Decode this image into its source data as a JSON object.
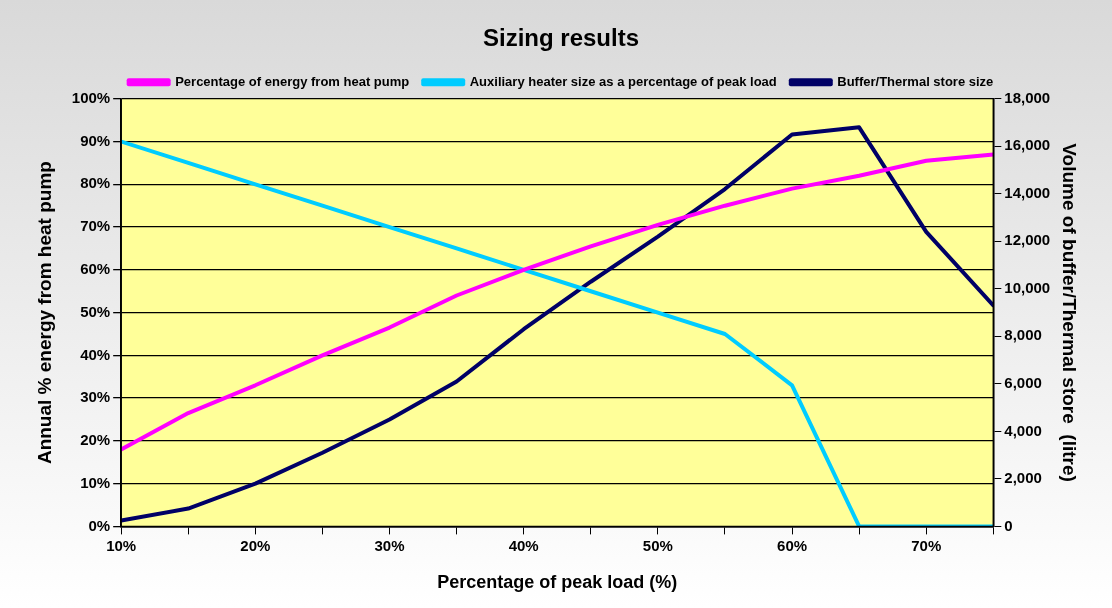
{
  "chart_data": {
    "type": "line",
    "title": "Sizing results",
    "xlabel": "Percentage of peak load (%)",
    "ylabel": "Annual % energy from heat pump",
    "y2label": "Volume of buffer/Thermal store  (litre)",
    "x": [
      10,
      15,
      20,
      25,
      30,
      35,
      40,
      45,
      50,
      55,
      60,
      65,
      70,
      75
    ],
    "series": [
      {
        "name": "Percentage of energy from heat pump",
        "color": "#ff00ff",
        "values": [
          18,
          26.5,
          33,
          40,
          46.5,
          54,
          60,
          65.5,
          70.5,
          75,
          79,
          82,
          85.5,
          87
        ]
      },
      {
        "name": "Auxiliary heater size as a percentage of peak load",
        "color": "#00ccff",
        "values": [
          90,
          85,
          80,
          75,
          70,
          65,
          60,
          55,
          50,
          45,
          33,
          0,
          0,
          0
        ]
      },
      {
        "name": "Buffer/Thermal store size",
        "color": "#000066",
        "axis": "y2",
        "values": [
          250,
          750,
          1800,
          3100,
          4500,
          6100,
          8300,
          10300,
          12200,
          14200,
          16500,
          16800,
          12400,
          9300
        ]
      }
    ],
    "xlim": [
      10,
      75
    ],
    "xticks": [
      {
        "value": 10,
        "label": "10%"
      },
      {
        "value": 15,
        "label": null
      },
      {
        "value": 20,
        "label": "20%"
      },
      {
        "value": 25,
        "label": null
      },
      {
        "value": 30,
        "label": "30%"
      },
      {
        "value": 35,
        "label": null
      },
      {
        "value": 40,
        "label": "40%"
      },
      {
        "value": 45,
        "label": null
      },
      {
        "value": 50,
        "label": "50%"
      },
      {
        "value": 55,
        "label": null
      },
      {
        "value": 60,
        "label": "60%"
      },
      {
        "value": 65,
        "label": null
      },
      {
        "value": 70,
        "label": "70%"
      },
      {
        "value": 75,
        "label": null
      }
    ],
    "ylim": [
      0,
      100
    ],
    "yticks": [
      {
        "value": 0,
        "label": "0%"
      },
      {
        "value": 10,
        "label": "10%"
      },
      {
        "value": 20,
        "label": "20%"
      },
      {
        "value": 30,
        "label": "30%"
      },
      {
        "value": 40,
        "label": "40%"
      },
      {
        "value": 50,
        "label": "50%"
      },
      {
        "value": 60,
        "label": "60%"
      },
      {
        "value": 70,
        "label": "70%"
      },
      {
        "value": 80,
        "label": "80%"
      },
      {
        "value": 90,
        "label": "90%"
      },
      {
        "value": 100,
        "label": "100%"
      }
    ],
    "y2lim": [
      0,
      18000
    ],
    "y2ticks": [
      {
        "value": 0,
        "label": "0"
      },
      {
        "value": 2000,
        "label": "2,000"
      },
      {
        "value": 4000,
        "label": "4,000"
      },
      {
        "value": 6000,
        "label": "6,000"
      },
      {
        "value": 8000,
        "label": "8,000"
      },
      {
        "value": 10000,
        "label": "10,000"
      },
      {
        "value": 12000,
        "label": "12,000"
      },
      {
        "value": 14000,
        "label": "14,000"
      },
      {
        "value": 16000,
        "label": "16,000"
      },
      {
        "value": 18000,
        "label": "18,000"
      }
    ],
    "grid": "y",
    "legend": "top",
    "marker": "none",
    "line_style": "solid"
  }
}
